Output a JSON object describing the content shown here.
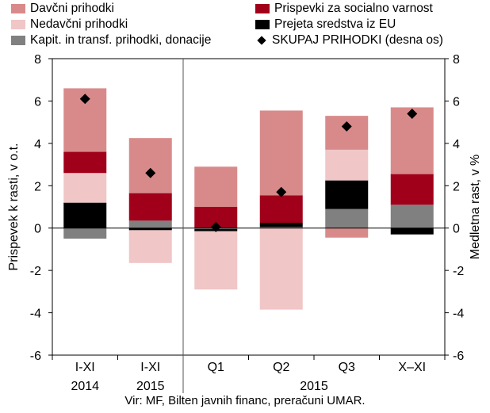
{
  "chart_data": {
    "type": "bar",
    "stacked": true,
    "categories": [
      "I-XI",
      "I-XI",
      "Q1",
      "Q2",
      "Q3",
      "X–XI"
    ],
    "category_group_labels": [
      "2014",
      "2015",
      "2015"
    ],
    "ylabel_left": "Prispevek k rasti, v o.t.",
    "ylabel_right": "Medletna rast, v %",
    "ylim_left": [
      -6,
      8
    ],
    "ylim_right": [
      -6,
      8
    ],
    "yticks": [
      "-6",
      "-4",
      "-2",
      "0",
      "2",
      "4",
      "6",
      "8"
    ],
    "series": [
      {
        "name": "Kapit. in transf. prihodki, donacije",
        "color": "#808080",
        "values": [
          -0.5,
          0.35,
          -0.05,
          0.05,
          0.9,
          1.1
        ]
      },
      {
        "name": "Prejeta sredstva iz EU",
        "color": "#000000",
        "values": [
          1.2,
          -0.1,
          -0.1,
          0.2,
          1.35,
          -0.3
        ]
      },
      {
        "name": "Nedavčni prihodki",
        "color": "#f0c6c6",
        "values": [
          1.4,
          -1.55,
          -2.75,
          -3.85,
          1.45,
          0.0
        ]
      },
      {
        "name": "Prispevki za socialno varnost",
        "color": "#a1001a",
        "values": [
          1.0,
          1.3,
          1.0,
          1.3,
          0.0,
          1.45
        ]
      },
      {
        "name": "Davčni prihodki",
        "color": "#d88a8a",
        "values": [
          3.0,
          2.6,
          1.9,
          4.0,
          1.6,
          3.15
        ]
      }
    ],
    "extra_negative": [
      {
        "series": "Davčni prihodki",
        "category_index": 4,
        "value": -0.45
      }
    ],
    "total_series": {
      "name": "SKUPAJ PRIHODKI (desna os)",
      "axis": "right",
      "values": [
        6.1,
        2.6,
        0.05,
        1.7,
        4.8,
        5.4
      ]
    },
    "legend": [
      {
        "label": "Davčni prihodki",
        "color": "#d88a8a",
        "marker": "square"
      },
      {
        "label": "Prispevki za socialno varnost",
        "color": "#a1001a",
        "marker": "square"
      },
      {
        "label": "Nedavčni prihodki",
        "color": "#f0c6c6",
        "marker": "square"
      },
      {
        "label": "Prejeta sredstva iz EU",
        "color": "#000000",
        "marker": "square"
      },
      {
        "label": "Kapit. in transf. prihodki, donacije",
        "color": "#808080",
        "marker": "square"
      },
      {
        "label": "SKUPAJ PRIHODKI (desna os)",
        "color": "#000000",
        "marker": "diamond"
      }
    ],
    "grid": false,
    "source": "Vir: MF, Bilten javnih financ, preračuni UMAR."
  }
}
